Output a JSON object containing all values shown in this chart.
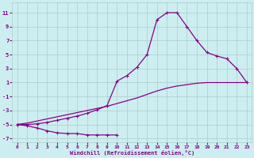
{
  "xlabel": "Windchill (Refroidissement éolien,°C)",
  "background_color": "#cceef0",
  "grid_color": "#aacccc",
  "line_color": "#880088",
  "xlim": [
    -0.5,
    23.5
  ],
  "ylim": [
    -7.5,
    12.5
  ],
  "xticks": [
    0,
    1,
    2,
    3,
    4,
    5,
    6,
    7,
    8,
    9,
    10,
    11,
    12,
    13,
    14,
    15,
    16,
    17,
    18,
    19,
    20,
    21,
    22,
    23
  ],
  "yticks": [
    -7,
    -5,
    -3,
    -1,
    1,
    3,
    5,
    7,
    9,
    11
  ],
  "curve1_x": [
    0,
    1,
    2,
    3,
    4,
    5,
    6,
    7,
    8,
    9,
    10
  ],
  "curve1_y": [
    -5,
    -5.2,
    -5.5,
    -5.9,
    -6.2,
    -6.3,
    -6.3,
    -6.5,
    -6.5,
    -6.5,
    -6.5
  ],
  "curve2_x": [
    0,
    1,
    2,
    3,
    4,
    5,
    6,
    7,
    8,
    9,
    10,
    11,
    12,
    13,
    14,
    15,
    16,
    17,
    18,
    19,
    20,
    21,
    22,
    23
  ],
  "curve2_y": [
    -5,
    -5,
    -4.9,
    -4.7,
    -4.4,
    -4.1,
    -3.8,
    -3.4,
    -2.9,
    -2.3,
    1.2,
    2.0,
    3.2,
    5.0,
    10.0,
    11.0,
    11.0,
    9.0,
    7.0,
    5.3,
    4.8,
    4.4,
    3.0,
    1.0
  ],
  "curve3_x": [
    0,
    1,
    2,
    3,
    4,
    5,
    6,
    7,
    8,
    9,
    10,
    11,
    12,
    13,
    14,
    15,
    16,
    17,
    18,
    19,
    20,
    21,
    22,
    23
  ],
  "curve3_y": [
    -5,
    -4.8,
    -4.5,
    -4.2,
    -3.9,
    -3.6,
    -3.3,
    -3.0,
    -2.7,
    -2.4,
    -2.0,
    -1.6,
    -1.2,
    -0.7,
    -0.2,
    0.2,
    0.5,
    0.7,
    0.9,
    1.0,
    1.0,
    1.0,
    1.0,
    1.0
  ]
}
